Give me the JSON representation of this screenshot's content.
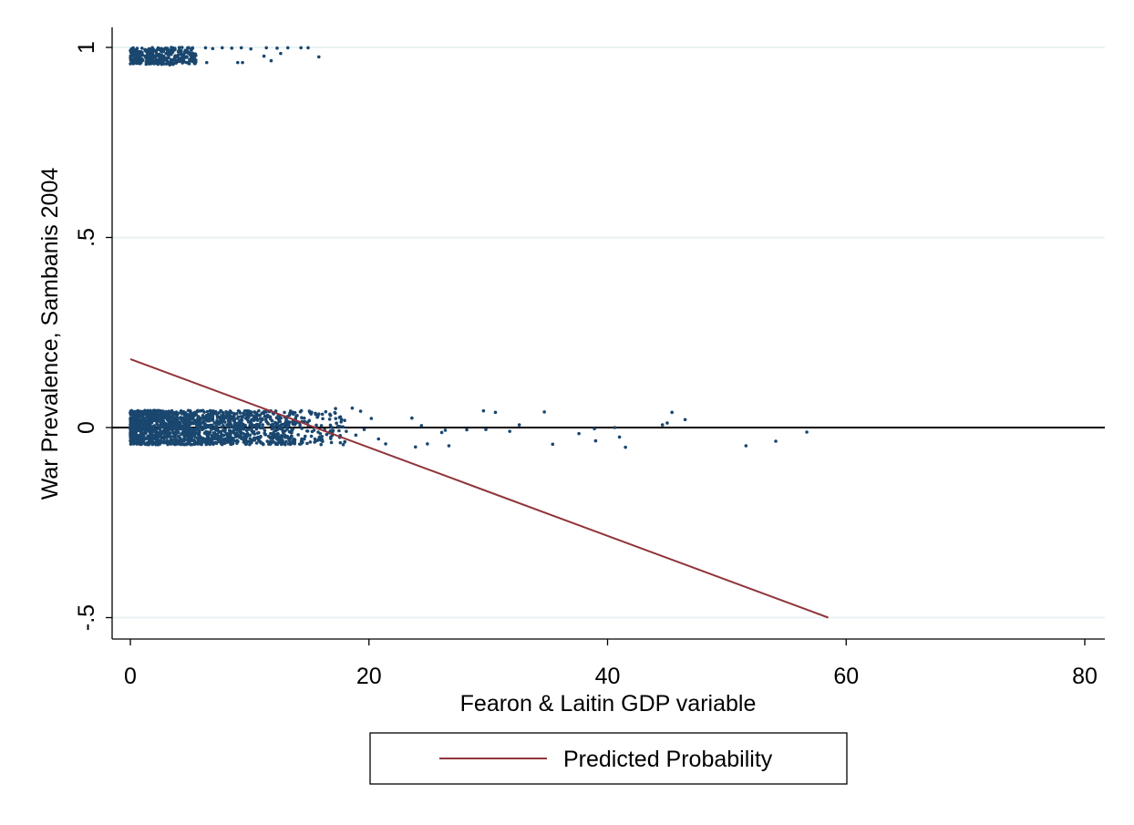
{
  "chart_data": {
    "type": "scatter",
    "xlabel": "Fearon & Laitin GDP variable",
    "ylabel": "War Prevalence, Sambanis 2004",
    "xlim": [
      -1,
      81
    ],
    "ylim": [
      -0.55,
      1.05
    ],
    "x_ticks": [
      0,
      20,
      40,
      60,
      80
    ],
    "x_tick_labels": [
      "0",
      "20",
      "40",
      "60",
      "80"
    ],
    "y_ticks": [
      -0.5,
      0,
      0.5,
      1
    ],
    "y_tick_labels": [
      "-.5",
      "0",
      ".5",
      "1"
    ],
    "grid": true,
    "zero_line": 0,
    "legend_position": "bottom",
    "colors": {
      "points": "#1a476f",
      "line": "#90353b",
      "grid": "#eaf2f3",
      "axis": "#000000"
    },
    "series": [
      {
        "type": "scatter",
        "color": "#1a476f",
        "jitter": 0.045,
        "dense_ranges": [
          {
            "y": 0,
            "xmin": 0.0,
            "xmax": 10.0,
            "count": 1300
          },
          {
            "y": 0,
            "xmin": 10.0,
            "xmax": 14.0,
            "count": 260
          },
          {
            "y": 0,
            "xmin": 14.0,
            "xmax": 18.0,
            "count": 90
          },
          {
            "y": 1,
            "xmin": 0.0,
            "xmax": 5.5,
            "count": 320
          }
        ],
        "points": [
          {
            "x": 5.2,
            "y": 0.999
          },
          {
            "x": 6.3,
            "y": 0.999
          },
          {
            "x": 6.9,
            "y": 0.997
          },
          {
            "x": 7.7,
            "y": 0.999
          },
          {
            "x": 8.5,
            "y": 0.998
          },
          {
            "x": 9.3,
            "y": 0.999
          },
          {
            "x": 10.1,
            "y": 0.996
          },
          {
            "x": 11.4,
            "y": 0.999
          },
          {
            "x": 12.3,
            "y": 0.998
          },
          {
            "x": 12.6,
            "y": 0.984
          },
          {
            "x": 13.2,
            "y": 0.999
          },
          {
            "x": 14.3,
            "y": 0.999
          },
          {
            "x": 14.9,
            "y": 0.999
          },
          {
            "x": 15.8,
            "y": 0.975
          },
          {
            "x": 9.0,
            "y": 0.96
          },
          {
            "x": 9.4,
            "y": 0.96
          },
          {
            "x": 5.4,
            "y": 0.977
          },
          {
            "x": 3.3,
            "y": 0.954
          },
          {
            "x": 6.4,
            "y": 0.96
          },
          {
            "x": 11.2,
            "y": 0.977
          },
          {
            "x": 11.8,
            "y": 0.965
          },
          {
            "x": 18.6,
            "y": 0.051
          },
          {
            "x": 19.3,
            "y": 0.043
          },
          {
            "x": 20.2,
            "y": 0.024
          },
          {
            "x": 19.6,
            "y": -0.005
          },
          {
            "x": 20.8,
            "y": -0.03
          },
          {
            "x": 21.4,
            "y": -0.043
          },
          {
            "x": 23.6,
            "y": 0.025
          },
          {
            "x": 23.9,
            "y": -0.051
          },
          {
            "x": 24.4,
            "y": 0.005
          },
          {
            "x": 24.9,
            "y": -0.043
          },
          {
            "x": 26.1,
            "y": -0.013
          },
          {
            "x": 26.4,
            "y": -0.007
          },
          {
            "x": 26.7,
            "y": -0.048
          },
          {
            "x": 28.2,
            "y": -0.006
          },
          {
            "x": 29.6,
            "y": 0.044
          },
          {
            "x": 29.8,
            "y": -0.005
          },
          {
            "x": 30.6,
            "y": 0.04
          },
          {
            "x": 31.8,
            "y": -0.01
          },
          {
            "x": 32.6,
            "y": 0.007
          },
          {
            "x": 34.7,
            "y": 0.041
          },
          {
            "x": 35.4,
            "y": -0.044
          },
          {
            "x": 37.6,
            "y": -0.016
          },
          {
            "x": 38.9,
            "y": -0.003
          },
          {
            "x": 39.0,
            "y": -0.035
          },
          {
            "x": 40.6,
            "y": -0.0
          },
          {
            "x": 41.0,
            "y": -0.025
          },
          {
            "x": 41.5,
            "y": -0.052
          },
          {
            "x": 44.6,
            "y": 0.007
          },
          {
            "x": 45.0,
            "y": 0.012
          },
          {
            "x": 45.4,
            "y": 0.04
          },
          {
            "x": 46.5,
            "y": 0.021
          },
          {
            "x": 51.6,
            "y": -0.048
          },
          {
            "x": 54.1,
            "y": -0.036
          },
          {
            "x": 56.7,
            "y": -0.012
          },
          {
            "x": 15.2,
            "y": 0.04
          },
          {
            "x": 16.1,
            "y": 0.035
          },
          {
            "x": 16.8,
            "y": -0.025
          },
          {
            "x": 17.2,
            "y": 0.05
          },
          {
            "x": 17.6,
            "y": -0.04
          },
          {
            "x": 18.1,
            "y": -0.01
          },
          {
            "x": 18.9,
            "y": -0.02
          }
        ]
      },
      {
        "name": "Predicted Probability",
        "type": "line",
        "color": "#90353b",
        "x": [
          0,
          58.5
        ],
        "y": [
          0.18,
          -0.5
        ]
      }
    ]
  }
}
